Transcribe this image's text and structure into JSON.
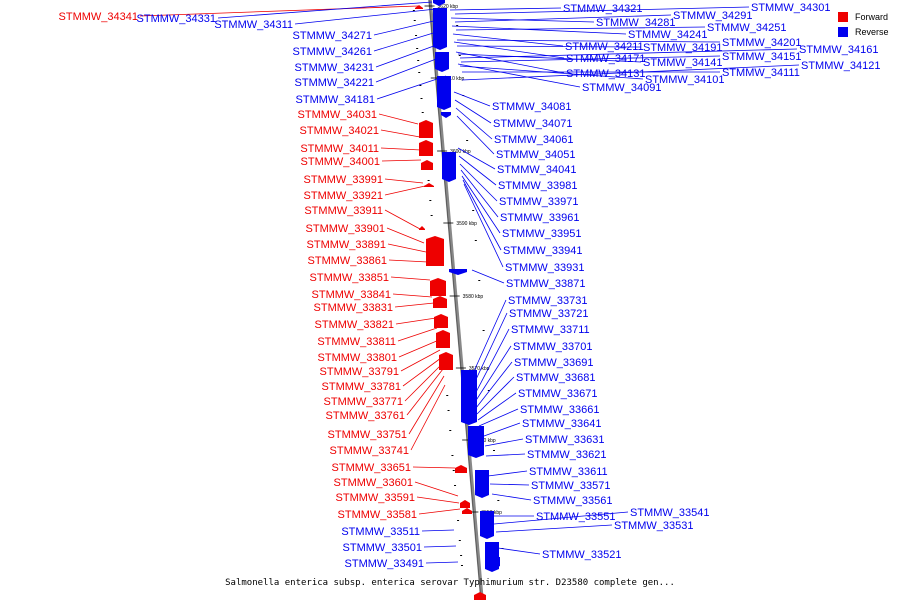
{
  "caption": "Salmonella enterica subsp. enterica serovar Typhimurium str. D23580 complete gen...",
  "legend": [
    {
      "label": "Forward",
      "color": "#ee0000"
    },
    {
      "label": "Reverse",
      "color": "#0000ee"
    }
  ],
  "colors": {
    "forward": "#ee0000",
    "reverse": "#0000ee",
    "axis": "#888888"
  },
  "ticks": [
    "3620 kbp",
    "3610 kbp",
    "3600 kbp",
    "3590 kbp",
    "3580 kbp",
    "3570 kbp",
    "3560 kbp",
    "3550 kbp"
  ],
  "forward_genes": [
    "STMMW_34341",
    "STMMW_34031",
    "STMMW_34021",
    "STMMW_34011",
    "STMMW_34001",
    "STMMW_33991",
    "STMMW_33921",
    "STMMW_33911",
    "STMMW_33901",
    "STMMW_33891",
    "STMMW_33861",
    "STMMW_33851",
    "STMMW_33841",
    "STMMW_33831",
    "STMMW_33821",
    "STMMW_33811",
    "STMMW_33801",
    "STMMW_33791",
    "STMMW_33781",
    "STMMW_33771",
    "STMMW_33761",
    "STMMW_33751",
    "STMMW_33741",
    "STMMW_33651",
    "STMMW_33601",
    "STMMW_33591",
    "STMMW_33581"
  ],
  "reverse_genes": [
    "STMMW_34331",
    "STMMW_34311",
    "STMMW_34271",
    "STMMW_34261",
    "STMMW_34231",
    "STMMW_34221",
    "STMMW_34181",
    "STMMW_34321",
    "STMMW_34281",
    "STMMW_34241",
    "STMMW_34211",
    "STMMW_34171",
    "STMMW_34131",
    "STMMW_34091",
    "STMMW_34301",
    "STMMW_34291",
    "STMMW_34251",
    "STMMW_34201",
    "STMMW_34191",
    "STMMW_34141",
    "STMMW_34101",
    "STMMW_34161",
    "STMMW_34151",
    "STMMW_34111",
    "STMMW_34121",
    "STMMW_34081",
    "STMMW_34071",
    "STMMW_34061",
    "STMMW_34051",
    "STMMW_34041",
    "STMMW_33981",
    "STMMW_33971",
    "STMMW_33961",
    "STMMW_33951",
    "STMMW_33941",
    "STMMW_33931",
    "STMMW_33871",
    "STMMW_33731",
    "STMMW_33721",
    "STMMW_33711",
    "STMMW_33701",
    "STMMW_33691",
    "STMMW_33681",
    "STMMW_33671",
    "STMMW_33661",
    "STMMW_33641",
    "STMMW_33631",
    "STMMW_33621",
    "STMMW_33611",
    "STMMW_33571",
    "STMMW_33561",
    "STMMW_33551",
    "STMMW_33541",
    "STMMW_33531",
    "STMMW_33521",
    "STMMW_33511",
    "STMMW_33501",
    "STMMW_33491"
  ]
}
